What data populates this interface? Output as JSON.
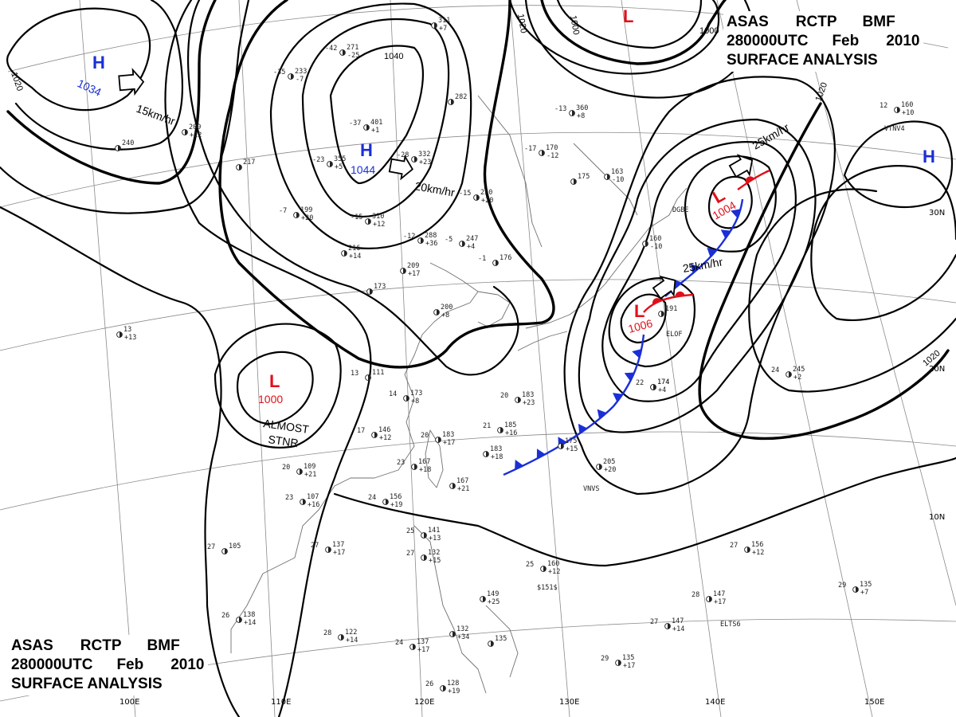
{
  "header": {
    "line1": [
      "ASAS",
      "RCTP",
      "BMF"
    ],
    "line2": [
      "280000UTC",
      "Feb",
      "2010"
    ],
    "line3": "SURFACE  ANALYSIS"
  },
  "colors": {
    "low": "#e0101a",
    "high": "#1a2fd6",
    "cold_front": "#1a2fd6",
    "warm_front": "#e0101a"
  },
  "longitudes": [
    "100E",
    "110E",
    "120E",
    "130E",
    "140E",
    "150E"
  ],
  "latitudes": [
    "30N",
    "20N",
    "10N"
  ],
  "isobar_labels": [
    "1020",
    "1000",
    "1040",
    "1020",
    "1000",
    "1020",
    "1020"
  ],
  "pressure_centers": [
    {
      "type": "H",
      "value": "1034"
    },
    {
      "type": "H",
      "value": "1044"
    },
    {
      "type": "H",
      "value": ""
    },
    {
      "type": "L",
      "value": "1000"
    },
    {
      "type": "L",
      "value": "1006"
    },
    {
      "type": "L",
      "value": "1004"
    },
    {
      "type": "L",
      "value": ""
    }
  ],
  "motion_labels": [
    "15km/hr",
    "20km/hr",
    "25km/hr",
    "25km/hr"
  ],
  "notes": [
    "ALMOST",
    "STNR"
  ],
  "stations": [
    {
      "t": "-42",
      "p": "271",
      "d": "-25"
    },
    {
      "t": "-35",
      "p": "233",
      "d": "-7"
    },
    {
      "t": "",
      "p": "311",
      "d": "+7"
    },
    {
      "t": "",
      "p": "209",
      "d": "+12"
    },
    {
      "t": "",
      "p": "240",
      "d": ""
    },
    {
      "t": "-37",
      "p": "401",
      "d": "+1"
    },
    {
      "t": "-23",
      "p": "355",
      "d": "+5"
    },
    {
      "t": "-28",
      "p": "332",
      "d": "+23"
    },
    {
      "t": "",
      "p": "282",
      "d": ""
    },
    {
      "t": "-13",
      "p": "360",
      "d": "+8"
    },
    {
      "t": "-17",
      "p": "170",
      "d": "-12"
    },
    {
      "t": "",
      "p": "217",
      "d": ""
    },
    {
      "t": "-15",
      "p": "250",
      "d": "+20"
    },
    {
      "t": "-7",
      "p": "199",
      "d": "+20"
    },
    {
      "t": "-15",
      "p": "310",
      "d": "+12"
    },
    {
      "t": "-12",
      "p": "288",
      "d": "+36"
    },
    {
      "t": "-5",
      "p": "247",
      "d": "+4"
    },
    {
      "t": "",
      "p": "216",
      "d": "+14"
    },
    {
      "t": "-1",
      "p": "176",
      "d": ""
    },
    {
      "t": "",
      "p": "209",
      "d": "+17"
    },
    {
      "t": "",
      "p": "173",
      "d": ""
    },
    {
      "t": "",
      "p": "200",
      "d": "+8"
    },
    {
      "t": "",
      "p": "175",
      "d": ""
    },
    {
      "t": "",
      "p": "163",
      "d": "-10"
    },
    {
      "t": "",
      "p": "160",
      "d": "-10"
    },
    {
      "t": "",
      "p": "191",
      "d": ""
    },
    {
      "t": "",
      "p": "174",
      "d": "+4"
    },
    {
      "t": "22",
      "p": "174",
      "d": ""
    },
    {
      "t": "24",
      "p": "245",
      "d": "+2"
    },
    {
      "t": "12",
      "p": "160",
      "d": "+10"
    },
    {
      "t": "13",
      "p": "111",
      "d": ""
    },
    {
      "t": "14",
      "p": "173",
      "d": "+8"
    },
    {
      "t": "17",
      "p": "146",
      "d": "+12"
    },
    {
      "t": "20",
      "p": "183",
      "d": "+23"
    },
    {
      "t": "21",
      "p": "185",
      "d": "+16"
    },
    {
      "t": "",
      "p": "175",
      "d": "+15"
    },
    {
      "t": "20",
      "p": "183",
      "d": "+17"
    },
    {
      "t": "",
      "p": "183",
      "d": "+18"
    },
    {
      "t": "",
      "p": "205",
      "d": "+20"
    },
    {
      "t": "20",
      "p": "109",
      "d": "+21"
    },
    {
      "t": "23",
      "p": "107",
      "d": "+16"
    },
    {
      "t": "23",
      "p": "167",
      "d": "+18"
    },
    {
      "t": "",
      "p": "167",
      "d": "+21"
    },
    {
      "t": "24",
      "p": "156",
      "d": "+19"
    },
    {
      "t": "27",
      "p": "137",
      "d": "+17"
    },
    {
      "t": "27",
      "p": "105",
      "d": ""
    },
    {
      "t": "25",
      "p": "141",
      "d": "+13"
    },
    {
      "t": "27",
      "p": "132",
      "d": "+15"
    },
    {
      "t": "25",
      "p": "160",
      "d": "+12"
    },
    {
      "t": "",
      "p": "149",
      "d": "+25"
    },
    {
      "t": "28",
      "p": "147",
      "d": "+17"
    },
    {
      "t": "27",
      "p": "147",
      "d": "+14"
    },
    {
      "t": "27",
      "p": "156",
      "d": "+12"
    },
    {
      "t": "29",
      "p": "135",
      "d": "+7"
    },
    {
      "t": "28",
      "p": "122",
      "d": "+14"
    },
    {
      "t": "24",
      "p": "137",
      "d": "+17"
    },
    {
      "t": "",
      "p": "132",
      "d": "+34"
    },
    {
      "t": "",
      "p": "135",
      "d": ""
    },
    {
      "t": "29",
      "p": "135",
      "d": "+17"
    },
    {
      "t": "26",
      "p": "128",
      "d": "+19"
    },
    {
      "t": "26",
      "p": "138",
      "d": "+14"
    },
    {
      "t": "",
      "p": "13",
      "d": "+13"
    }
  ],
  "station_codes": [
    "ELTS6",
    "VNVS",
    "DGBE",
    "ELOF",
    "$151$",
    "VTNV4"
  ]
}
